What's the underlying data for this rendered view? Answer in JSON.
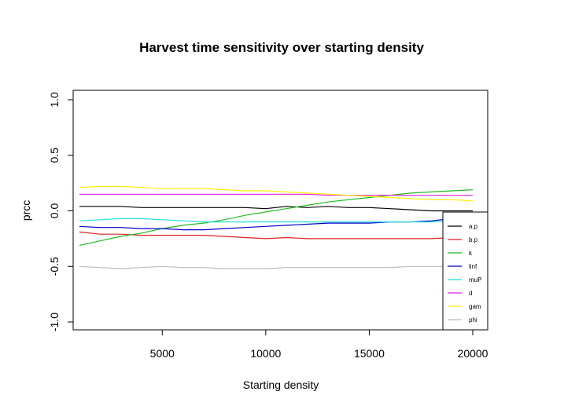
{
  "chart_data": {
    "type": "line",
    "title": "Harvest time sensitivity over starting density",
    "xlabel": "Starting density",
    "ylabel": "prcc",
    "xlim": [
      1000,
      20000
    ],
    "ylim": [
      -1.0,
      1.0
    ],
    "xticks": [
      5000,
      10000,
      15000,
      20000
    ],
    "xtick_labels": [
      "5000",
      "10000",
      "15000",
      "20000"
    ],
    "yticks": [
      -1.0,
      -0.5,
      0.0,
      0.5,
      1.0
    ],
    "ytick_labels": [
      "-1.0",
      "-0.5",
      "0.0",
      "0.5",
      "1.0"
    ],
    "grid": false,
    "legend_position": "bottom-right",
    "x": [
      1000,
      2000,
      3000,
      4000,
      5000,
      6000,
      7000,
      8000,
      9000,
      10000,
      11000,
      12000,
      13000,
      14000,
      15000,
      16000,
      17000,
      18000,
      19000,
      20000
    ],
    "series": [
      {
        "name": "a.p",
        "color": "#000000",
        "values": [
          0.04,
          0.04,
          0.04,
          0.03,
          0.03,
          0.03,
          0.03,
          0.03,
          0.03,
          0.02,
          0.04,
          0.03,
          0.04,
          0.03,
          0.03,
          0.02,
          0.01,
          0.0,
          0.0,
          0.0
        ]
      },
      {
        "name": "b.p",
        "color": "#DF2020",
        "values": [
          -0.19,
          -0.21,
          -0.21,
          -0.22,
          -0.22,
          -0.22,
          -0.22,
          -0.23,
          -0.24,
          -0.25,
          -0.24,
          -0.25,
          -0.25,
          -0.25,
          -0.25,
          -0.25,
          -0.25,
          -0.25,
          -0.24,
          -0.24
        ]
      },
      {
        "name": "k",
        "color": "#22BB22",
        "values": [
          -0.31,
          -0.27,
          -0.23,
          -0.2,
          -0.16,
          -0.13,
          -0.11,
          -0.08,
          -0.04,
          -0.01,
          0.02,
          0.05,
          0.08,
          0.1,
          0.12,
          0.14,
          0.16,
          0.17,
          0.18,
          0.19
        ]
      },
      {
        "name": "linf",
        "color": "#0000CC",
        "values": [
          -0.14,
          -0.15,
          -0.15,
          -0.16,
          -0.16,
          -0.17,
          -0.17,
          -0.16,
          -0.15,
          -0.14,
          -0.13,
          -0.12,
          -0.11,
          -0.11,
          -0.11,
          -0.1,
          -0.1,
          -0.09,
          -0.07,
          -0.05
        ]
      },
      {
        "name": "muP",
        "color": "#22DDDD",
        "values": [
          -0.09,
          -0.08,
          -0.07,
          -0.07,
          -0.08,
          -0.09,
          -0.1,
          -0.1,
          -0.1,
          -0.1,
          -0.1,
          -0.1,
          -0.1,
          -0.1,
          -0.1,
          -0.1,
          -0.1,
          -0.1,
          -0.09,
          -0.09
        ]
      },
      {
        "name": "d",
        "color": "#DD22DD",
        "values": [
          0.15,
          0.15,
          0.15,
          0.15,
          0.15,
          0.15,
          0.15,
          0.15,
          0.15,
          0.15,
          0.15,
          0.15,
          0.14,
          0.14,
          0.14,
          0.14,
          0.14,
          0.14,
          0.14,
          0.14
        ]
      },
      {
        "name": "gam",
        "color": "#FFEE00",
        "values": [
          0.21,
          0.22,
          0.22,
          0.21,
          0.2,
          0.2,
          0.2,
          0.19,
          0.18,
          0.18,
          0.17,
          0.16,
          0.15,
          0.14,
          0.13,
          0.12,
          0.11,
          0.1,
          0.1,
          0.09
        ]
      },
      {
        "name": "phi",
        "color": "#BBBBBB",
        "values": [
          -0.5,
          -0.51,
          -0.52,
          -0.51,
          -0.5,
          -0.51,
          -0.51,
          -0.52,
          -0.52,
          -0.52,
          -0.51,
          -0.51,
          -0.51,
          -0.51,
          -0.51,
          -0.51,
          -0.5,
          -0.5,
          -0.5,
          -0.5
        ]
      }
    ]
  }
}
